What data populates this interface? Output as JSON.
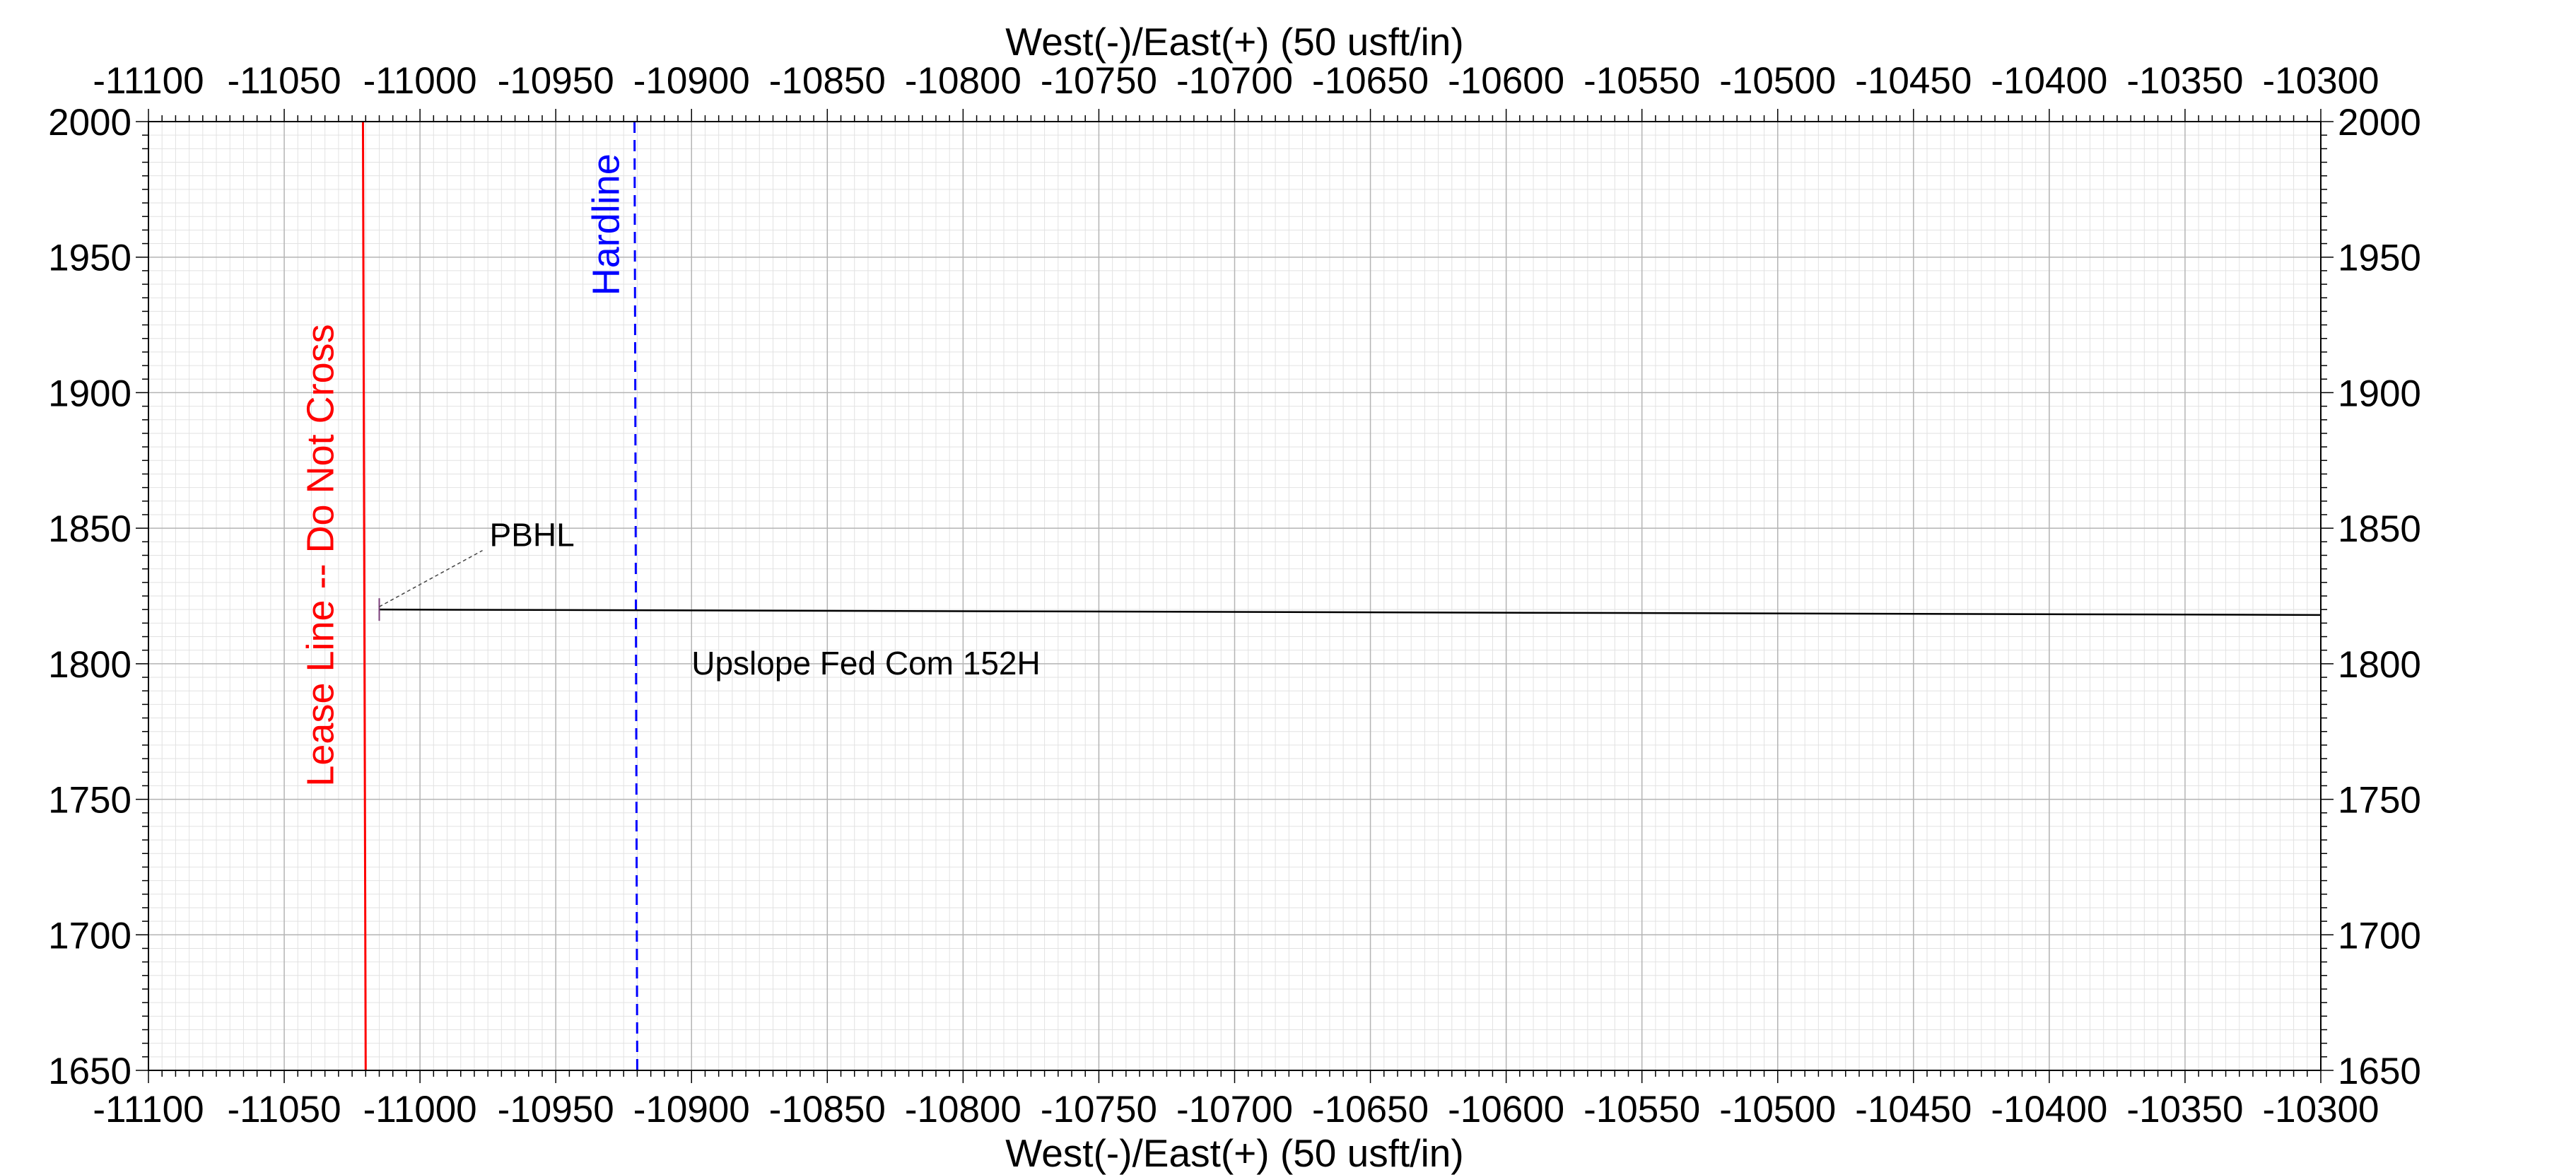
{
  "chart_data": {
    "type": "line",
    "title": "",
    "xlabel_top": "West(-)/East(+) (50 usft/in)",
    "xlabel_bottom": "West(-)/East(+) (50 usft/in)",
    "ylabel": "",
    "xlim": [
      -11100,
      -10300
    ],
    "ylim": [
      1650,
      2000
    ],
    "x_major": 50,
    "y_major": 50,
    "x_minor": 5,
    "y_minor": 5,
    "grid": true,
    "x_ticks": [
      "-11100",
      "-11050",
      "-11000",
      "-10950",
      "-10900",
      "-10850",
      "-10800",
      "-10750",
      "-10700",
      "-10650",
      "-10600",
      "-10550",
      "-10500",
      "-10450",
      "-10400",
      "-10350",
      "-10300"
    ],
    "y_ticks": [
      "1650",
      "1700",
      "1750",
      "1800",
      "1850",
      "1900",
      "1950",
      "2000"
    ],
    "series": [
      {
        "name": "Upslope Fed Com 152H",
        "color": "#000000",
        "x": [
          -11015,
          -10300
        ],
        "y": [
          1820,
          1818
        ]
      }
    ],
    "boundaries": [
      {
        "label": "Lease Line -- Do Not Cross",
        "color": "#ff0000",
        "style": "solid",
        "x": [
          -11021,
          -11020
        ],
        "y": [
          2000,
          1650
        ]
      },
      {
        "label": "Hardline",
        "color": "#0000ff",
        "style": "dashed",
        "x": [
          -10921,
          -10920
        ],
        "y": [
          2000,
          1650
        ]
      }
    ],
    "annotations": [
      {
        "text": "PBHL",
        "x": -10990,
        "y": 1847,
        "point": [
          -11015,
          1820
        ]
      }
    ]
  }
}
